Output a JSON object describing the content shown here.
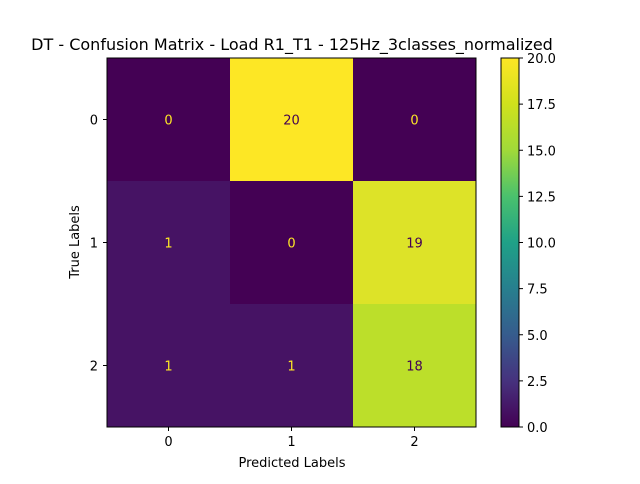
{
  "chart_data": {
    "type": "heatmap",
    "title": "DT - Confusion Matrix - Load R1_T1 - 125Hz_3classes_normalized",
    "xlabel": "Predicted Labels",
    "ylabel": "True Labels",
    "x_categories": [
      "0",
      "1",
      "2"
    ],
    "y_categories": [
      "0",
      "1",
      "2"
    ],
    "values": [
      [
        0,
        20,
        0
      ],
      [
        1,
        0,
        19
      ],
      [
        1,
        1,
        18
      ]
    ],
    "colormap": "viridis",
    "colorbar": {
      "range": [
        0.0,
        20.0
      ],
      "ticks": [
        "0.0",
        "2.5",
        "5.0",
        "7.5",
        "10.0",
        "12.5",
        "15.0",
        "17.5",
        "20.0"
      ]
    },
    "grid": false
  }
}
